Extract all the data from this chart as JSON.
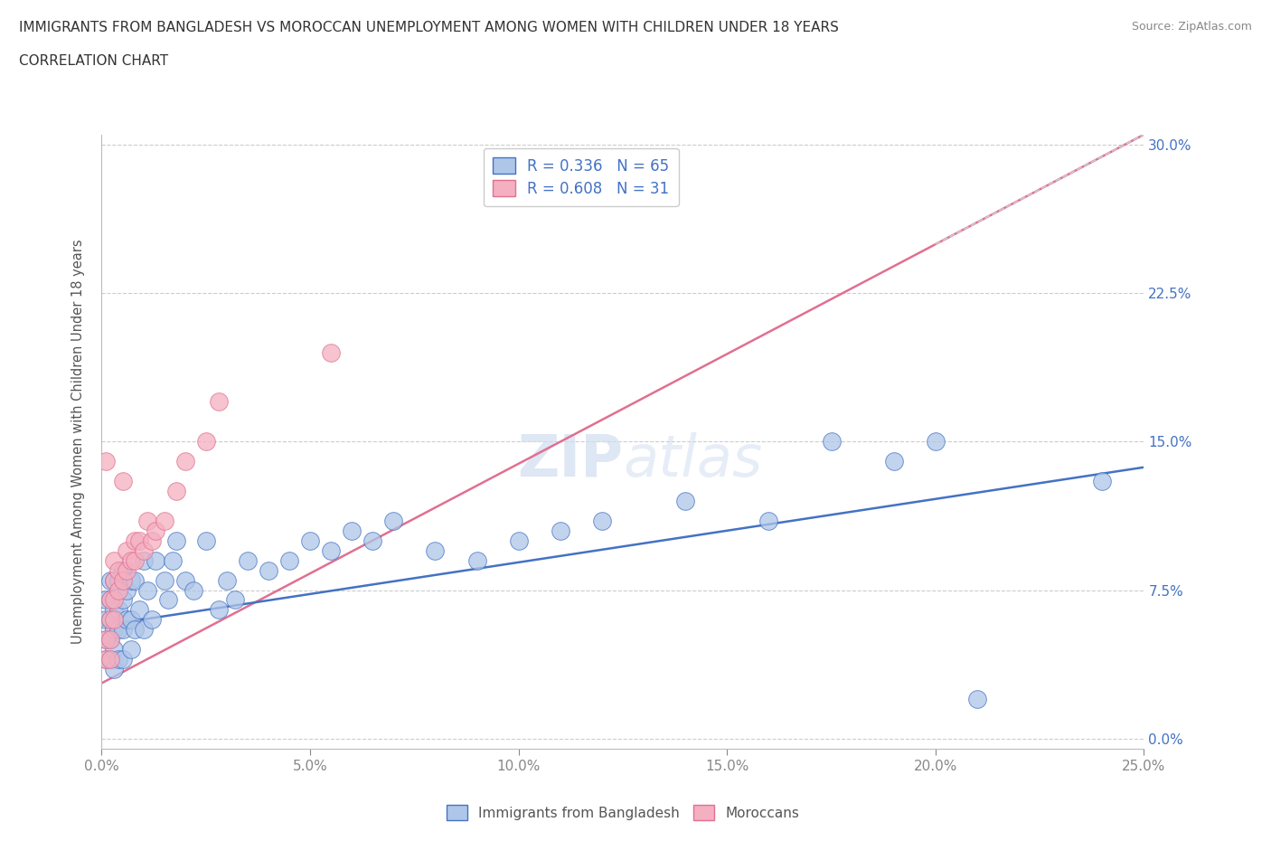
{
  "title_line1": "IMMIGRANTS FROM BANGLADESH VS MOROCCAN UNEMPLOYMENT AMONG WOMEN WITH CHILDREN UNDER 18 YEARS",
  "title_line2": "CORRELATION CHART",
  "source_text": "Source: ZipAtlas.com",
  "xlim": [
    0.0,
    0.25
  ],
  "ylim": [
    -0.005,
    0.305
  ],
  "x_tick_vals": [
    0.0,
    0.05,
    0.1,
    0.15,
    0.2,
    0.25
  ],
  "x_tick_labels": [
    "0.0%",
    "5.0%",
    "10.0%",
    "15.0%",
    "20.0%",
    "25.0%"
  ],
  "y_tick_vals": [
    0.0,
    0.075,
    0.15,
    0.225,
    0.3
  ],
  "y_tick_labels": [
    "0.0%",
    "7.5%",
    "15.0%",
    "22.5%",
    "30.0%"
  ],
  "watermark": "ZIPatlas",
  "bangladesh_color": "#aec6e8",
  "morocco_color": "#f4afc0",
  "bangladesh_line_color": "#4472c4",
  "morocco_line_color": "#e07090",
  "legend_label_bangladesh": "Immigrants from Bangladesh",
  "legend_label_morocco": "Moroccans",
  "bangladesh_x": [
    0.001,
    0.001,
    0.001,
    0.001,
    0.002,
    0.002,
    0.002,
    0.002,
    0.002,
    0.003,
    0.003,
    0.003,
    0.003,
    0.003,
    0.004,
    0.004,
    0.004,
    0.004,
    0.005,
    0.005,
    0.005,
    0.005,
    0.006,
    0.006,
    0.007,
    0.007,
    0.007,
    0.008,
    0.008,
    0.009,
    0.01,
    0.01,
    0.011,
    0.012,
    0.013,
    0.015,
    0.016,
    0.017,
    0.018,
    0.02,
    0.022,
    0.025,
    0.028,
    0.03,
    0.032,
    0.035,
    0.04,
    0.045,
    0.05,
    0.055,
    0.06,
    0.065,
    0.07,
    0.08,
    0.09,
    0.1,
    0.11,
    0.12,
    0.14,
    0.16,
    0.175,
    0.19,
    0.2,
    0.21,
    0.24
  ],
  "bangladesh_y": [
    0.04,
    0.05,
    0.06,
    0.07,
    0.04,
    0.05,
    0.06,
    0.07,
    0.08,
    0.035,
    0.045,
    0.055,
    0.065,
    0.08,
    0.04,
    0.055,
    0.065,
    0.08,
    0.04,
    0.055,
    0.07,
    0.085,
    0.06,
    0.075,
    0.045,
    0.06,
    0.08,
    0.055,
    0.08,
    0.065,
    0.055,
    0.09,
    0.075,
    0.06,
    0.09,
    0.08,
    0.07,
    0.09,
    0.1,
    0.08,
    0.075,
    0.1,
    0.065,
    0.08,
    0.07,
    0.09,
    0.085,
    0.09,
    0.1,
    0.095,
    0.105,
    0.1,
    0.11,
    0.095,
    0.09,
    0.1,
    0.105,
    0.11,
    0.12,
    0.11,
    0.15,
    0.14,
    0.15,
    0.02,
    0.13
  ],
  "morocco_x": [
    0.001,
    0.001,
    0.001,
    0.002,
    0.002,
    0.002,
    0.002,
    0.003,
    0.003,
    0.003,
    0.003,
    0.004,
    0.004,
    0.005,
    0.005,
    0.006,
    0.006,
    0.007,
    0.008,
    0.008,
    0.009,
    0.01,
    0.011,
    0.012,
    0.013,
    0.015,
    0.018,
    0.02,
    0.025,
    0.028,
    0.055
  ],
  "morocco_y": [
    0.04,
    0.05,
    0.14,
    0.04,
    0.05,
    0.06,
    0.07,
    0.06,
    0.07,
    0.08,
    0.09,
    0.075,
    0.085,
    0.08,
    0.13,
    0.085,
    0.095,
    0.09,
    0.09,
    0.1,
    0.1,
    0.095,
    0.11,
    0.1,
    0.105,
    0.11,
    0.125,
    0.14,
    0.15,
    0.17,
    0.195
  ],
  "bang_line_x0": 0.0,
  "bang_line_y0": 0.057,
  "bang_line_x1": 0.25,
  "bang_line_y1": 0.137,
  "mor_line_x0": 0.0,
  "mor_line_y0": 0.028,
  "mor_line_x1": 0.25,
  "mor_line_y1": 0.305
}
